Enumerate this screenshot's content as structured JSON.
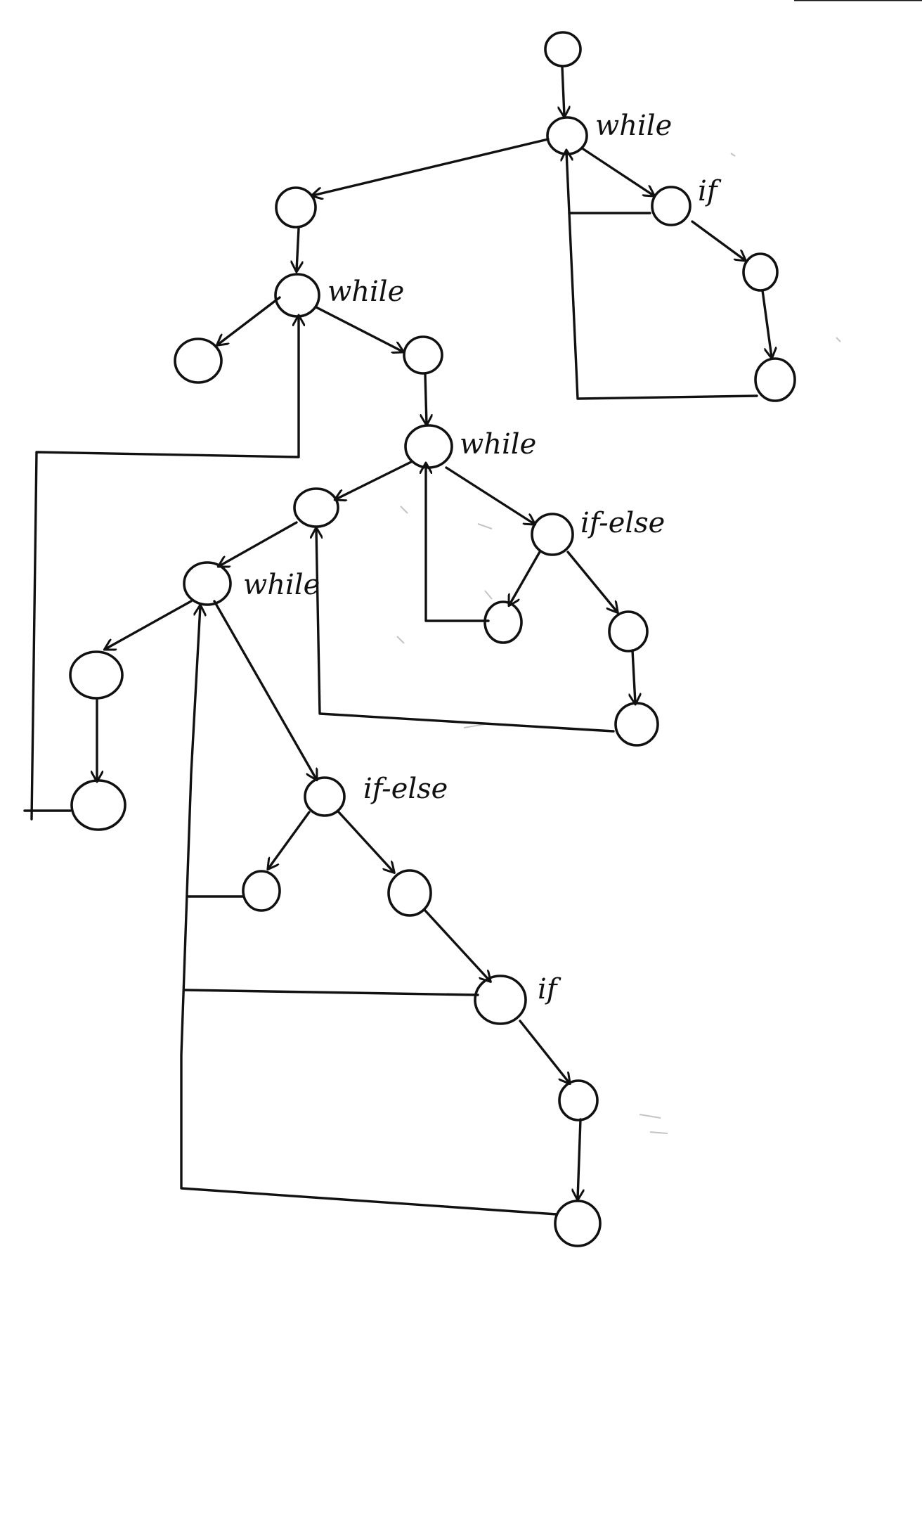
{
  "diagram": {
    "labels": {
      "n1": "while",
      "n2": "if",
      "n6": "while",
      "n9": "while",
      "n10": "if-else",
      "n14": "while",
      "n17": "if-else",
      "n20": "if"
    },
    "nodes": [
      "n0",
      "n1",
      "n2",
      "n3",
      "n4",
      "n5",
      "n6",
      "n7",
      "n8",
      "n9",
      "n10",
      "n11",
      "n12",
      "n13",
      "n14",
      "n15",
      "n16",
      "n17",
      "n18",
      "n19",
      "n20",
      "n21",
      "n22",
      "n23"
    ],
    "edges": [
      [
        "n0",
        "n1"
      ],
      [
        "n1",
        "n2"
      ],
      [
        "n2",
        "n3"
      ],
      [
        "n3",
        "n4"
      ],
      [
        "n4",
        "n1"
      ],
      [
        "n2",
        "n1"
      ],
      [
        "n1",
        "n5"
      ],
      [
        "n5",
        "n6"
      ],
      [
        "n6",
        "n7"
      ],
      [
        "n6",
        "n8"
      ],
      [
        "n8",
        "n9"
      ],
      [
        "n9",
        "n10"
      ],
      [
        "n10",
        "n11"
      ],
      [
        "n10",
        "n12"
      ],
      [
        "n12",
        "n13"
      ],
      [
        "n11",
        "n9"
      ],
      [
        "n9",
        "n22"
      ],
      [
        "n13",
        "n22"
      ],
      [
        "n22",
        "n14"
      ],
      [
        "n14",
        "n15"
      ],
      [
        "n15",
        "n16"
      ],
      [
        "n16",
        "n6"
      ],
      [
        "n14",
        "n17"
      ],
      [
        "n17",
        "n18"
      ],
      [
        "n17",
        "n19"
      ],
      [
        "n19",
        "n20"
      ],
      [
        "n20",
        "n21"
      ],
      [
        "n21",
        "n23"
      ],
      [
        "n18",
        "n14"
      ],
      [
        "n20",
        "n14"
      ],
      [
        "n23",
        "n14"
      ]
    ],
    "colors": {
      "ink": "#111111",
      "paper": "#ffffff"
    }
  }
}
